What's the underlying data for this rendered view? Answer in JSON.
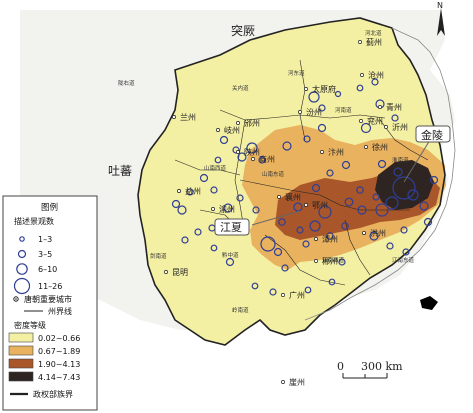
{
  "colors": {
    "ocean": "#ffffff",
    "land": "#f2f2ee",
    "class1": "#f3efa3",
    "class2": "#e9b25f",
    "class3": "#a8562a",
    "class4": "#2e2522",
    "circle": "#2f3f95",
    "boundary": "#222222"
  },
  "regions": {
    "tujue": "突厥",
    "tubo": "吐蕃"
  },
  "dao_labels": [
    {
      "id": "hebei",
      "text": "河北道"
    },
    {
      "id": "guannei",
      "text": "关内道"
    },
    {
      "id": "hedong",
      "text": "河东道"
    },
    {
      "id": "longyou",
      "text": "陇右道"
    },
    {
      "id": "shannan-west",
      "text": "山南西道"
    },
    {
      "id": "shannan-east",
      "text": "山南东道"
    },
    {
      "id": "henan",
      "text": "河南道"
    },
    {
      "id": "huainan",
      "text": "淮南道"
    },
    {
      "id": "jiannan",
      "text": "剑南道"
    },
    {
      "id": "qianzhong",
      "text": "黔中道"
    },
    {
      "id": "jiangnan-west",
      "text": "江南西道"
    },
    {
      "id": "jiangnan-east",
      "text": "江南东道"
    },
    {
      "id": "lingnan",
      "text": "岭南道"
    }
  ],
  "cities": [
    {
      "id": "jizhou",
      "text": "蓟州"
    },
    {
      "id": "cangzhou",
      "text": "沧州"
    },
    {
      "id": "taiyuan",
      "text": "太原府"
    },
    {
      "id": "fenzhou",
      "text": "汾州"
    },
    {
      "id": "qingzhou",
      "text": "青州"
    },
    {
      "id": "yanzhou",
      "text": "兖州"
    },
    {
      "id": "yizhou",
      "text": "沂州"
    },
    {
      "id": "lanzhou",
      "text": "兰州"
    },
    {
      "id": "qizhou",
      "text": "岐州"
    },
    {
      "id": "binzhou",
      "text": "邠州"
    },
    {
      "id": "shanzhou",
      "text": "陕州"
    },
    {
      "id": "shangzhou",
      "text": "商州"
    },
    {
      "id": "bianzhou",
      "text": "汴州"
    },
    {
      "id": "xuzhou",
      "text": "徐州"
    },
    {
      "id": "yizhou2",
      "text": "益州"
    },
    {
      "id": "yuzhou",
      "text": "渝州"
    },
    {
      "id": "xiangzhou",
      "text": "襄州"
    },
    {
      "id": "ezhou",
      "text": "鄂州"
    },
    {
      "id": "hongzhou",
      "text": "洪州"
    },
    {
      "id": "tanzhou",
      "text": "潭州"
    },
    {
      "id": "chenzhou",
      "text": "郴州"
    },
    {
      "id": "kunming",
      "text": "昆明"
    },
    {
      "id": "guangzhou",
      "text": "广州"
    },
    {
      "id": "yazhou",
      "text": "崖州"
    }
  ],
  "callouts": {
    "jinling": "金陵",
    "jiangxia": "江夏"
  },
  "north_label": "N",
  "scale_bar": {
    "zero": "0",
    "label": "300 km"
  },
  "legend": {
    "title": "图例",
    "circles_title": "描述景观数",
    "circles": [
      "1–3",
      "3–5",
      "6–10",
      "11–26"
    ],
    "city_symbol": "唐朝重要城市",
    "zhou_line": "州界线",
    "density_title": "密度等级",
    "density": [
      "0.02~0.66",
      "0.67~1.89",
      "1.90~4.13",
      "4.14~7.43"
    ],
    "regime_line": "政权部族界"
  }
}
